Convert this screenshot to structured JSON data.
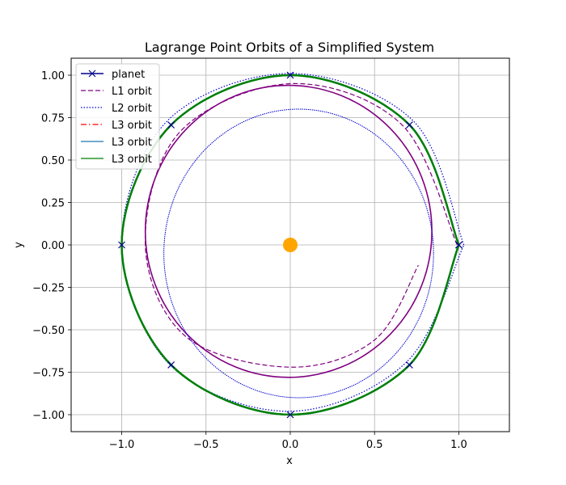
{
  "chart_data": {
    "type": "line",
    "title": "Lagrange Point Orbits of a Simplified System",
    "xlabel": "x",
    "ylabel": "y",
    "xlim": [
      -1.3,
      1.3
    ],
    "ylim": [
      -1.1,
      1.1
    ],
    "xticks": [
      -1.0,
      -0.5,
      0.0,
      0.5,
      1.0
    ],
    "xtick_labels": [
      "−1.0",
      "−0.5",
      "0.0",
      "0.5",
      "1.0"
    ],
    "yticks": [
      1.0,
      0.75,
      0.5,
      0.25,
      0.0,
      -0.25,
      -0.5,
      -0.75,
      -1.0
    ],
    "ytick_labels": [
      "1.00",
      "0.75",
      "0.50",
      "0.25",
      "0.00",
      "−0.25",
      "−0.50",
      "−0.75",
      "−1.00"
    ],
    "grid": true,
    "legend_position": "top-left",
    "sun": {
      "x": 0.0,
      "y": 0.0,
      "color": "#ffa500"
    },
    "series": [
      {
        "name": "planet",
        "color": "#00008b",
        "style": "solid-x",
        "points": [
          [
            1.0,
            0.0
          ],
          [
            0.707,
            0.707
          ],
          [
            0.0,
            1.0
          ],
          [
            -0.707,
            0.707
          ],
          [
            -1.0,
            0.0
          ],
          [
            -0.707,
            -0.707
          ],
          [
            0.0,
            -1.0
          ],
          [
            0.707,
            -0.707
          ],
          [
            1.0,
            0.0
          ]
        ]
      },
      {
        "name": "L1 orbit",
        "color": "#800080",
        "style": "dashed",
        "points": [
          [
            0.99,
            0.0
          ],
          [
            0.66,
            0.71
          ],
          [
            0.0,
            0.95
          ],
          [
            -0.66,
            0.66
          ],
          [
            -0.86,
            0.0
          ],
          [
            -0.62,
            -0.54
          ],
          [
            0.0,
            -0.72
          ],
          [
            0.5,
            -0.56
          ],
          [
            0.76,
            -0.12
          ]
        ]
      },
      {
        "name": "L2 orbit",
        "color": "#0000cd",
        "style": "dotted",
        "points": [
          [
            1.03,
            0.0
          ],
          [
            0.73,
            0.73
          ],
          [
            0.0,
            1.01
          ],
          [
            -0.73,
            0.73
          ],
          [
            -1.0,
            0.0
          ],
          [
            -0.71,
            -0.71
          ],
          [
            0.0,
            -0.98
          ],
          [
            0.69,
            -0.69
          ],
          [
            1.03,
            0.0
          ]
        ]
      },
      {
        "name": "L3 orbit",
        "color": "#ff0000",
        "style": "dashdot",
        "points": [
          [
            1.0,
            0.0
          ],
          [
            0.707,
            0.707
          ],
          [
            0.0,
            1.0
          ],
          [
            -0.707,
            0.707
          ],
          [
            -1.0,
            0.0
          ],
          [
            -0.707,
            -0.707
          ],
          [
            0.0,
            -1.0
          ],
          [
            0.707,
            -0.707
          ],
          [
            1.0,
            0.0
          ]
        ]
      },
      {
        "name": "L3 orbit",
        "color": "#1f77b4",
        "style": "solid",
        "points": [
          [
            1.0,
            0.0
          ],
          [
            0.707,
            0.707
          ],
          [
            0.0,
            1.0
          ],
          [
            -0.707,
            0.707
          ],
          [
            -1.0,
            0.0
          ],
          [
            -0.707,
            -0.707
          ],
          [
            0.0,
            -1.0
          ],
          [
            0.707,
            -0.707
          ],
          [
            1.0,
            0.0
          ]
        ]
      },
      {
        "name": "L3 orbit",
        "color": "#008000",
        "style": "solid",
        "points": [
          [
            1.0,
            0.0
          ],
          [
            0.707,
            0.707
          ],
          [
            0.0,
            1.0
          ],
          [
            -0.707,
            0.707
          ],
          [
            -1.0,
            0.0
          ],
          [
            -0.707,
            -0.707
          ],
          [
            0.0,
            -1.0
          ],
          [
            0.707,
            -0.707
          ],
          [
            1.0,
            0.0
          ]
        ]
      }
    ]
  }
}
